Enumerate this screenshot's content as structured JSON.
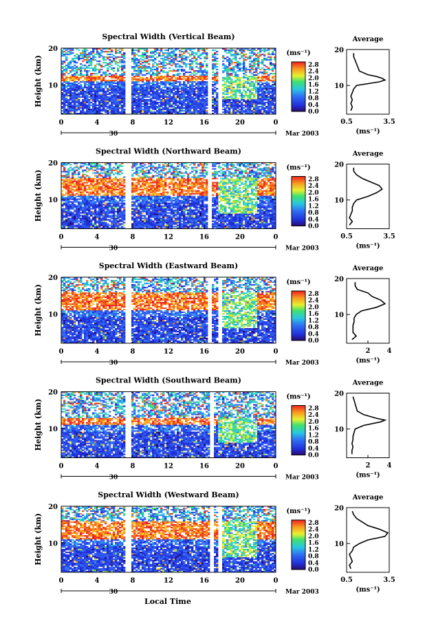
{
  "figure": {
    "date_label": "Mar 2003",
    "day_label": "30",
    "xlabel": "Local Time",
    "ylabel": "Height (km)",
    "unit_label": "(ms⁻¹)",
    "avg_title": "Average",
    "avg_xlabel": "(ms⁻¹)"
  },
  "chart_data": [
    {
      "type": "heatmap",
      "title": "Spectral Width (Vertical Beam)",
      "xlabel": "Local Time",
      "ylabel": "Height (km)",
      "xlim": [
        0,
        24
      ],
      "ylim": [
        2,
        20
      ],
      "xticks": [
        "0",
        "4",
        "8",
        "12",
        "16",
        "20",
        "0"
      ],
      "yticks": [
        "20",
        "10"
      ],
      "colorbar": {
        "label": "(ms⁻¹)",
        "ticks": [
          "2.8",
          "2.4",
          "2.0",
          "1.6",
          "1.2",
          "0.8",
          "0.4",
          "0.0"
        ],
        "range": [
          0,
          3.0
        ]
      },
      "data_gaps_hours": [
        [
          7.2,
          7.8
        ],
        [
          16.5,
          16.9
        ],
        [
          17.5,
          18.0
        ]
      ],
      "strong_layer_km": [
        11,
        12.5
      ],
      "average_profile": {
        "title": "Average",
        "xlabel": "(ms⁻¹)",
        "xticks": [
          "0.5",
          "3.5"
        ],
        "xlim": [
          0.5,
          3.5
        ],
        "yticks": [
          "20",
          "10"
        ],
        "ylim": [
          2,
          20
        ],
        "height_km": [
          3,
          4,
          5,
          6,
          7,
          8,
          9,
          10,
          11,
          11.5,
          12,
          12.5,
          13,
          14,
          15,
          16,
          17,
          18,
          19
        ],
        "width_ms": [
          0.8,
          0.9,
          0.8,
          0.9,
          0.8,
          0.9,
          1.0,
          1.2,
          2.8,
          3.2,
          3.0,
          2.6,
          2.0,
          1.4,
          1.3,
          1.2,
          1.1,
          1.0,
          1.0
        ]
      }
    },
    {
      "type": "heatmap",
      "title": "Spectral Width (Northward Beam)",
      "xlabel": "Local Time",
      "ylabel": "Height (km)",
      "xlim": [
        0,
        24
      ],
      "ylim": [
        2,
        20
      ],
      "xticks": [
        "0",
        "4",
        "8",
        "12",
        "16",
        "20",
        "0"
      ],
      "yticks": [
        "20",
        "10"
      ],
      "colorbar": {
        "label": "(ms⁻¹)",
        "ticks": [
          "2.8",
          "2.4",
          "2.0",
          "1.6",
          "1.2",
          "0.8",
          "0.4",
          "0.0"
        ],
        "range": [
          0,
          3.0
        ]
      },
      "data_gaps_hours": [
        [
          7.2,
          7.8
        ],
        [
          16.5,
          16.9
        ]
      ],
      "strong_layer_km": [
        11,
        16
      ],
      "average_profile": {
        "title": "Average",
        "xlabel": "(ms⁻¹)",
        "xticks": [
          "0.5",
          "3.5"
        ],
        "xlim": [
          0.5,
          3.5
        ],
        "yticks": [
          "20",
          "10"
        ],
        "ylim": [
          2,
          20
        ],
        "height_km": [
          3,
          4,
          5,
          6,
          7,
          8,
          9,
          10,
          11,
          12,
          13,
          14,
          15,
          16,
          17,
          18,
          19
        ],
        "width_ms": [
          0.7,
          0.9,
          0.7,
          0.8,
          0.9,
          0.9,
          1.0,
          1.2,
          2.0,
          2.6,
          3.0,
          2.8,
          2.2,
          1.6,
          1.2,
          1.0,
          1.0
        ]
      }
    },
    {
      "type": "heatmap",
      "title": "Spectral Width (Eastward Beam)",
      "xlabel": "Local Time",
      "ylabel": "Height (km)",
      "xlim": [
        0,
        24
      ],
      "ylim": [
        2,
        20
      ],
      "xticks": [
        "0",
        "4",
        "8",
        "12",
        "16",
        "20",
        "0"
      ],
      "yticks": [
        "20",
        "10"
      ],
      "colorbar": {
        "label": "(ms⁻¹)",
        "ticks": [
          "2.8",
          "2.4",
          "2.0",
          "1.6",
          "1.2",
          "0.8",
          "0.4",
          "0.0"
        ],
        "range": [
          0,
          3.0
        ]
      },
      "data_gaps_hours": [
        [
          7.2,
          7.8
        ],
        [
          16.5,
          16.9
        ],
        [
          17.5,
          18.0
        ]
      ],
      "strong_layer_km": [
        11,
        16
      ],
      "average_profile": {
        "title": "Average",
        "xlabel": "(ms⁻¹)",
        "xticks": [
          "2",
          "4"
        ],
        "xlim": [
          0,
          4
        ],
        "yticks": [
          "20",
          "10"
        ],
        "ylim": [
          2,
          20
        ],
        "height_km": [
          3,
          4,
          5,
          6,
          7,
          8,
          9,
          10,
          11,
          12,
          13,
          14,
          15,
          16,
          17,
          18,
          19
        ],
        "width_ms": [
          0.5,
          0.9,
          0.6,
          0.6,
          0.6,
          0.7,
          0.7,
          0.9,
          1.4,
          2.8,
          3.6,
          3.2,
          2.4,
          2.0,
          1.0,
          0.8,
          0.8
        ]
      }
    },
    {
      "type": "heatmap",
      "title": "Spectral Width (Southward Beam)",
      "xlabel": "Local Time",
      "ylabel": "Height (km)",
      "xlim": [
        0,
        24
      ],
      "ylim": [
        2,
        20
      ],
      "xticks": [
        "0",
        "4",
        "8",
        "12",
        "16",
        "20",
        "0"
      ],
      "yticks": [
        "20",
        "10"
      ],
      "colorbar": {
        "label": "(ms⁻¹)",
        "ticks": [
          "2.8",
          "2.4",
          "2.0",
          "1.6",
          "1.2",
          "0.8",
          "0.4",
          "0.0"
        ],
        "range": [
          0,
          3.0
        ]
      },
      "data_gaps_hours": [
        [
          7.2,
          7.8
        ],
        [
          16.7,
          17.0
        ]
      ],
      "strong_layer_km": [
        11,
        13
      ],
      "average_profile": {
        "title": "Average",
        "xlabel": "(ms⁻¹)",
        "xticks": [
          "2",
          "4"
        ],
        "xlim": [
          0,
          4
        ],
        "yticks": [
          "20",
          "10"
        ],
        "ylim": [
          2,
          20
        ],
        "height_km": [
          3,
          4,
          5,
          6,
          7,
          8,
          9,
          10,
          11,
          12,
          12.5,
          13,
          14,
          15,
          16,
          17,
          18,
          19
        ],
        "width_ms": [
          0.5,
          0.5,
          0.6,
          0.5,
          0.6,
          0.6,
          0.7,
          0.8,
          1.6,
          3.2,
          3.6,
          2.8,
          1.6,
          1.0,
          0.9,
          0.8,
          0.7,
          0.6
        ]
      }
    },
    {
      "type": "heatmap",
      "title": "Spectral Width (Westward Beam)",
      "xlabel": "Local Time",
      "ylabel": "Height (km)",
      "xlim": [
        0,
        24
      ],
      "ylim": [
        2,
        20
      ],
      "xticks": [
        "0",
        "4",
        "8",
        "12",
        "16",
        "20",
        "0"
      ],
      "yticks": [
        "20",
        "10"
      ],
      "colorbar": {
        "label": "(ms⁻¹)",
        "ticks": [
          "2.8",
          "2.4",
          "2.0",
          "1.6",
          "1.2",
          "0.8",
          "0.4",
          "0.0"
        ],
        "range": [
          0,
          3.0
        ]
      },
      "data_gaps_hours": [
        [
          7.2,
          7.8
        ],
        [
          16.7,
          17.0
        ],
        [
          17.5,
          17.9
        ]
      ],
      "strong_layer_km": [
        11,
        16
      ],
      "average_profile": {
        "title": "Average",
        "xlabel": "(ms⁻¹)",
        "xticks": [
          "0.5",
          "3.5"
        ],
        "xlim": [
          0.5,
          3.5
        ],
        "yticks": [
          "20",
          "10"
        ],
        "ylim": [
          2,
          20
        ],
        "height_km": [
          3,
          4,
          5,
          6,
          7,
          8,
          9,
          10,
          11,
          12,
          13,
          14,
          15,
          16,
          17,
          18,
          19
        ],
        "width_ms": [
          0.8,
          0.7,
          0.9,
          0.8,
          0.7,
          0.9,
          1.0,
          1.4,
          2.0,
          3.2,
          3.4,
          2.8,
          2.0,
          1.6,
          1.2,
          1.0,
          0.9
        ]
      }
    }
  ]
}
